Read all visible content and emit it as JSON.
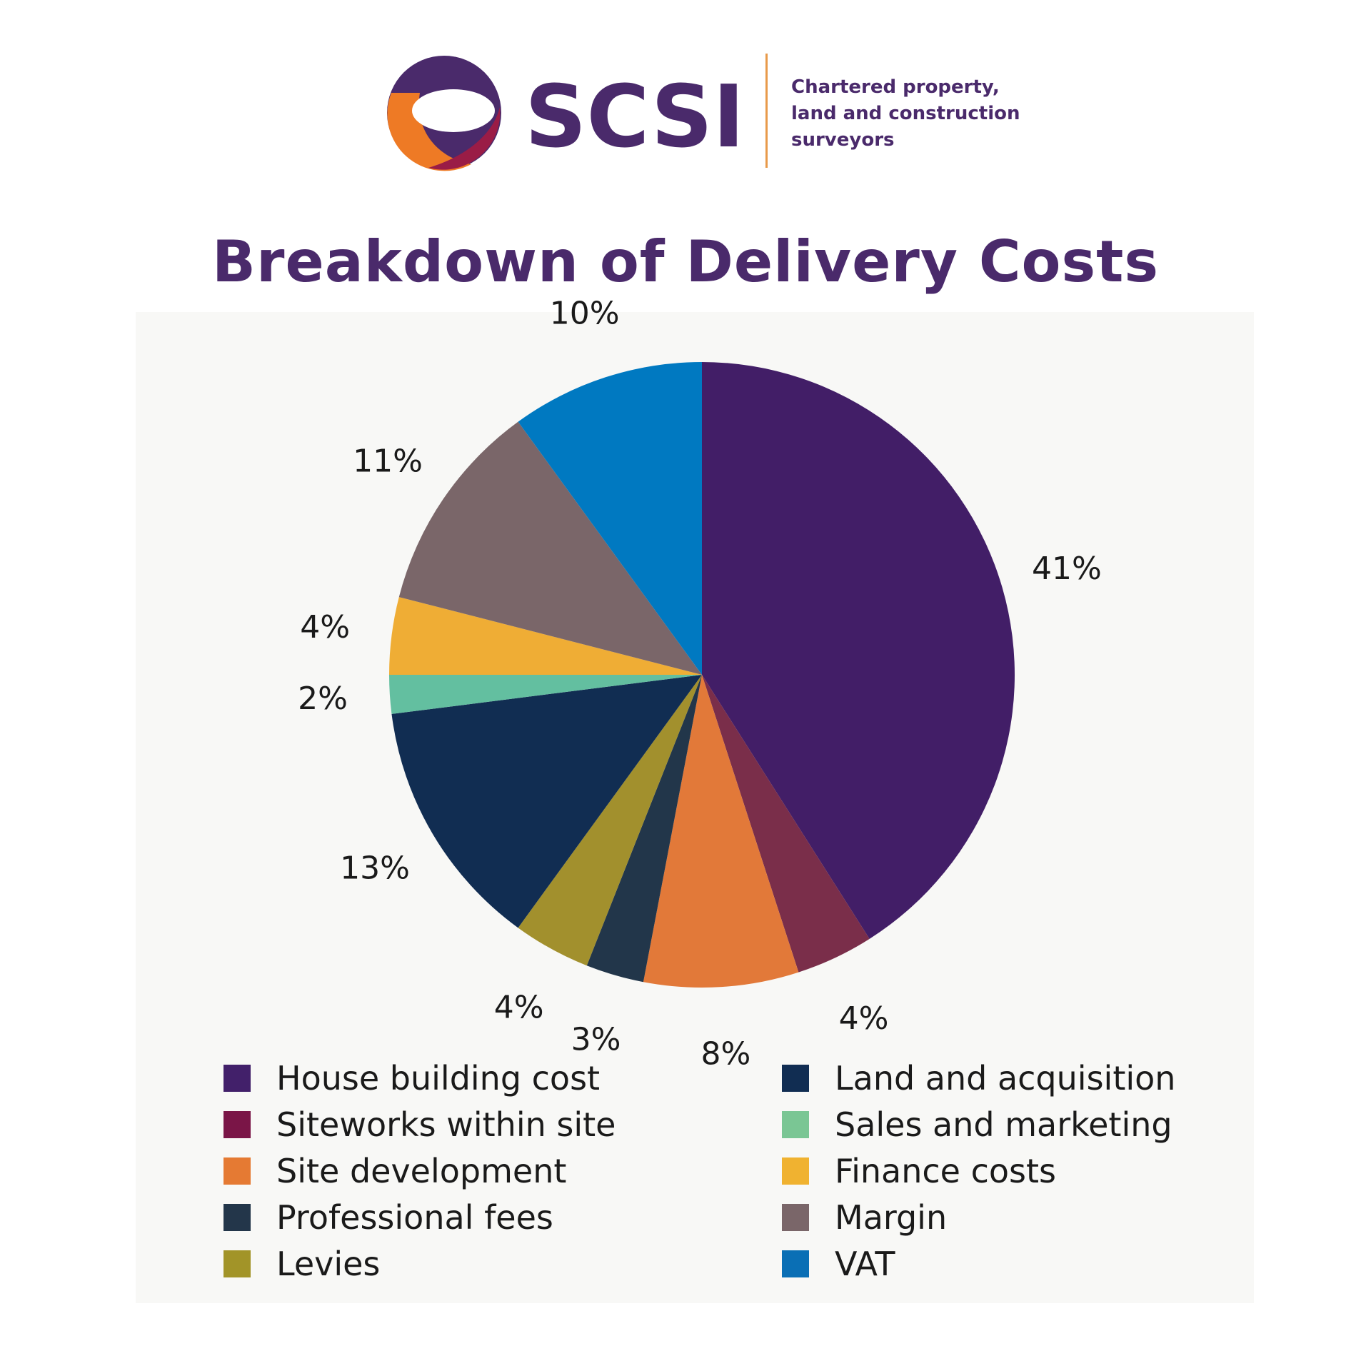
{
  "logo": {
    "wordmark": "SCSI",
    "tagline": [
      "Chartered property,",
      "land and construction",
      "surveyors"
    ],
    "colors": {
      "purple": "#4a2a6b",
      "orange": "#ee7a25",
      "crimson": "#9a1c46",
      "divider": "#e89a4a"
    }
  },
  "chart_data": {
    "type": "pie",
    "title": "Breakdown of Delivery Costs",
    "categories": [
      "House building cost",
      "Siteworks within site",
      "Site development",
      "Professional fees",
      "Levies",
      "Land and acquisition",
      "Sales and marketing",
      "Finance costs",
      "Margin",
      "VAT"
    ],
    "values": [
      41,
      4,
      8,
      3,
      4,
      13,
      2,
      4,
      11,
      10
    ],
    "value_labels": [
      "41%",
      "4%",
      "8%",
      "3%",
      "4%",
      "13%",
      "2%",
      "4%",
      "11%",
      "10%"
    ],
    "colors": [
      "#421e67",
      "#7a2e4a",
      "#e27939",
      "#22364a",
      "#a2902d",
      "#112d52",
      "#63bfa0",
      "#efad35",
      "#7a6669",
      "#0079c1"
    ],
    "legend_colors": [
      "#42206a",
      "#7a1547",
      "#e57a33",
      "#23364a",
      "#a29428",
      "#112d52",
      "#7ac694",
      "#f0b230",
      "#7a6669",
      "#0a6fb5"
    ],
    "start_angle_deg": 0,
    "direction": "clockwise",
    "legend_placement": "bottom, two columns"
  }
}
